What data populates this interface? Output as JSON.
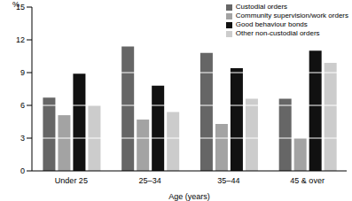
{
  "chart_data": {
    "type": "bar",
    "y_label": "%",
    "x_label": "Age (years)",
    "categories": [
      "Under 25",
      "25–34",
      "35–44",
      "45 & over"
    ],
    "series": [
      {
        "name": "Custodial orders",
        "color": "#666666",
        "values": [
          6.7,
          11.4,
          10.8,
          6.6
        ]
      },
      {
        "name": "Community supervision/work orders",
        "color": "#a3a3a3",
        "values": [
          5.1,
          4.7,
          4.3,
          3.0
        ]
      },
      {
        "name": "Good behaviour bonds",
        "color": "#111111",
        "values": [
          8.9,
          7.8,
          9.4,
          11.0
        ]
      },
      {
        "name": "Other non-custodial orders",
        "color": "#cccccc",
        "values": [
          6.0,
          5.4,
          6.6,
          9.9
        ]
      }
    ],
    "ylim": [
      0,
      15
    ],
    "yticks": [
      0,
      3,
      6,
      9,
      12,
      15
    ],
    "grid": true,
    "legend": "top-right"
  }
}
